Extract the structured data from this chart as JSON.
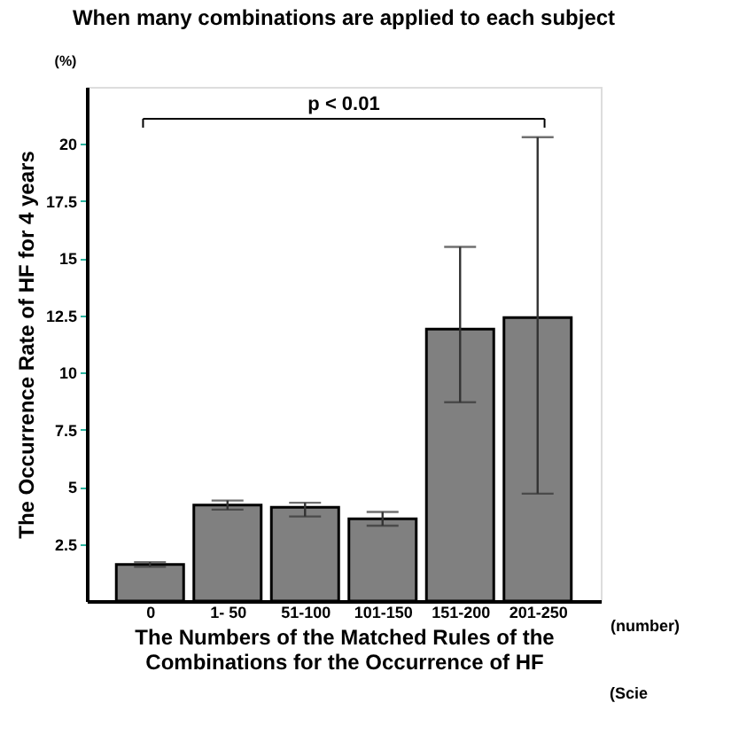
{
  "chart_data": {
    "type": "bar",
    "title": "When many combinations are applied to each subject",
    "xlabel": "The Numbers of the Matched Rules of the Combinations for the Occurrence of HF",
    "ylabel": "The Occurrence Rate of HF for 4 years",
    "categories": [
      "0",
      "1-  50",
      "51-100",
      "101-150",
      "151-200",
      "201-250"
    ],
    "values": [
      1.6,
      4.2,
      4.1,
      3.6,
      11.9,
      12.4
    ],
    "errors": [
      [
        1.5,
        1.7
      ],
      [
        4.0,
        4.4
      ],
      [
        3.7,
        4.3
      ],
      [
        3.3,
        3.9
      ],
      [
        8.7,
        15.5
      ],
      [
        4.7,
        20.3
      ]
    ],
    "color": "#808080",
    "ylim": [
      0,
      22.5
    ],
    "yticks": [
      2.5,
      5,
      7.5,
      10,
      12.5,
      15,
      17.5,
      20
    ],
    "grid": false,
    "annotations": [
      "(%)",
      "(number)",
      {
        "text": "p < 0.01"
      },
      "(Scie"
    ]
  }
}
